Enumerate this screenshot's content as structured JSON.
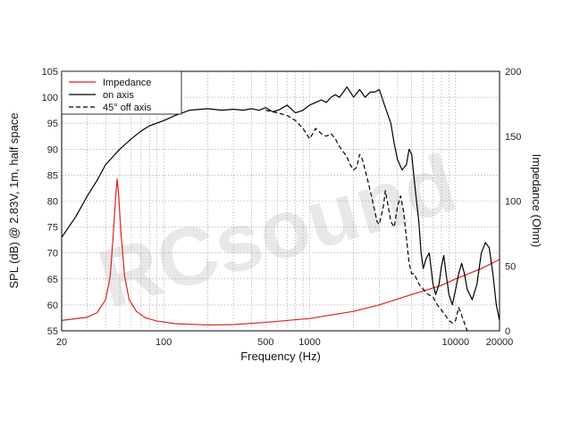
{
  "chart_data": {
    "type": "line",
    "title": "",
    "xlabel": "Frequency (Hz)",
    "ylabel_left": "SPL (dB) @ 2.83V, 1m, half space",
    "ylabel_right": "Impedance (Ohm)",
    "x_scale": "log",
    "xlim": [
      20,
      20000
    ],
    "ylim_left": [
      55,
      105
    ],
    "ylim_right": [
      0,
      200
    ],
    "x_ticks": [
      20,
      100,
      500,
      1000,
      10000,
      20000
    ],
    "x_tick_labels": [
      "20",
      "100",
      "500",
      "1000",
      "10000",
      "20000"
    ],
    "y_left_ticks": [
      55,
      60,
      65,
      70,
      75,
      80,
      85,
      90,
      95,
      100,
      105
    ],
    "y_left_tick_labels": [
      "55",
      "60",
      "65",
      "70",
      "75",
      "80",
      "85",
      "90",
      "95",
      "100",
      "105"
    ],
    "y_right_ticks": [
      0,
      50,
      100,
      150,
      200
    ],
    "y_right_tick_labels": [
      "0",
      "50",
      "100",
      "150",
      "200"
    ],
    "grid": true,
    "legend_position": "top-left",
    "watermark": "RCsound",
    "series": [
      {
        "name": "Impedance",
        "axis": "right",
        "color": "#e02020",
        "style": "solid",
        "points": [
          [
            20,
            8
          ],
          [
            30,
            10.5
          ],
          [
            35,
            14
          ],
          [
            40,
            24
          ],
          [
            43,
            42
          ],
          [
            45,
            72
          ],
          [
            47,
            105
          ],
          [
            48,
            117
          ],
          [
            49,
            106
          ],
          [
            51,
            75
          ],
          [
            54,
            42
          ],
          [
            58,
            24
          ],
          [
            65,
            15
          ],
          [
            75,
            10
          ],
          [
            90,
            7.5
          ],
          [
            120,
            5.5
          ],
          [
            200,
            4.5
          ],
          [
            300,
            4.8
          ],
          [
            500,
            6.5
          ],
          [
            1000,
            9.5
          ],
          [
            2000,
            15
          ],
          [
            3000,
            20
          ],
          [
            5000,
            28
          ],
          [
            8000,
            35
          ],
          [
            10000,
            40
          ],
          [
            15000,
            48
          ],
          [
            20000,
            55
          ]
        ]
      },
      {
        "name": "on axis",
        "axis": "left",
        "color": "#000000",
        "style": "solid",
        "points": [
          [
            20,
            73
          ],
          [
            25,
            77
          ],
          [
            30,
            81
          ],
          [
            35,
            84
          ],
          [
            40,
            87
          ],
          [
            50,
            90
          ],
          [
            60,
            92
          ],
          [
            70,
            93.5
          ],
          [
            80,
            94.5
          ],
          [
            100,
            95.5
          ],
          [
            120,
            96.5
          ],
          [
            150,
            97.5
          ],
          [
            200,
            97.8
          ],
          [
            250,
            97.5
          ],
          [
            300,
            97.7
          ],
          [
            350,
            97.5
          ],
          [
            400,
            97.8
          ],
          [
            450,
            97.5
          ],
          [
            500,
            98
          ],
          [
            560,
            97.2
          ],
          [
            620,
            97.6
          ],
          [
            700,
            98.5
          ],
          [
            800,
            97
          ],
          [
            900,
            97.5
          ],
          [
            1000,
            98.5
          ],
          [
            1100,
            99
          ],
          [
            1200,
            99.5
          ],
          [
            1300,
            99
          ],
          [
            1400,
            100
          ],
          [
            1500,
            100.5
          ],
          [
            1600,
            100
          ],
          [
            1700,
            101
          ],
          [
            1800,
            102
          ],
          [
            1900,
            101
          ],
          [
            2000,
            100
          ],
          [
            2200,
            101.5
          ],
          [
            2400,
            100
          ],
          [
            2600,
            101
          ],
          [
            2800,
            101
          ],
          [
            3000,
            101.5
          ],
          [
            3300,
            98
          ],
          [
            3600,
            95
          ],
          [
            3800,
            91
          ],
          [
            4000,
            88
          ],
          [
            4300,
            86
          ],
          [
            4600,
            87
          ],
          [
            4800,
            90
          ],
          [
            5000,
            89
          ],
          [
            5300,
            82
          ],
          [
            5600,
            76
          ],
          [
            5800,
            70
          ],
          [
            6000,
            67
          ],
          [
            6300,
            69
          ],
          [
            6600,
            70
          ],
          [
            7000,
            64
          ],
          [
            7300,
            62
          ],
          [
            7700,
            64
          ],
          [
            8000,
            67.5
          ],
          [
            8300,
            69.5
          ],
          [
            8600,
            66
          ],
          [
            9000,
            62
          ],
          [
            9500,
            60
          ],
          [
            10000,
            63
          ],
          [
            10500,
            66
          ],
          [
            11000,
            68
          ],
          [
            11500,
            66
          ],
          [
            12000,
            63
          ],
          [
            13000,
            61
          ],
          [
            14000,
            64
          ],
          [
            15000,
            70
          ],
          [
            16000,
            72
          ],
          [
            17000,
            71
          ],
          [
            18000,
            66
          ],
          [
            19000,
            60
          ],
          [
            20000,
            57
          ]
        ]
      },
      {
        "name": "45° off axis",
        "axis": "left",
        "color": "#000000",
        "style": "dashed",
        "points": [
          [
            500,
            97.5
          ],
          [
            600,
            97
          ],
          [
            700,
            96.5
          ],
          [
            800,
            95.5
          ],
          [
            900,
            94
          ],
          [
            1000,
            92
          ],
          [
            1050,
            93
          ],
          [
            1100,
            94
          ],
          [
            1200,
            93
          ],
          [
            1300,
            92.5
          ],
          [
            1400,
            93
          ],
          [
            1500,
            92
          ],
          [
            1600,
            90.5
          ],
          [
            1700,
            89.5
          ],
          [
            1800,
            88.5
          ],
          [
            1900,
            87
          ],
          [
            2000,
            86
          ],
          [
            2100,
            86.5
          ],
          [
            2200,
            89
          ],
          [
            2300,
            88
          ],
          [
            2500,
            84
          ],
          [
            2700,
            80
          ],
          [
            2900,
            76
          ],
          [
            3000,
            75.5
          ],
          [
            3200,
            79
          ],
          [
            3300,
            82
          ],
          [
            3400,
            80
          ],
          [
            3600,
            76
          ],
          [
            3800,
            75
          ],
          [
            4000,
            79
          ],
          [
            4200,
            81
          ],
          [
            4400,
            78
          ],
          [
            4600,
            73
          ],
          [
            4800,
            68
          ],
          [
            5000,
            66
          ],
          [
            5200,
            66
          ],
          [
            5600,
            64
          ],
          [
            6000,
            63
          ],
          [
            6500,
            62
          ],
          [
            7000,
            61.5
          ],
          [
            7500,
            60
          ],
          [
            8000,
            59
          ],
          [
            8500,
            58
          ],
          [
            9000,
            57
          ],
          [
            9500,
            56.5
          ],
          [
            10000,
            57
          ],
          [
            10500,
            59.5
          ],
          [
            11000,
            58
          ],
          [
            12000,
            55
          ]
        ]
      }
    ]
  }
}
